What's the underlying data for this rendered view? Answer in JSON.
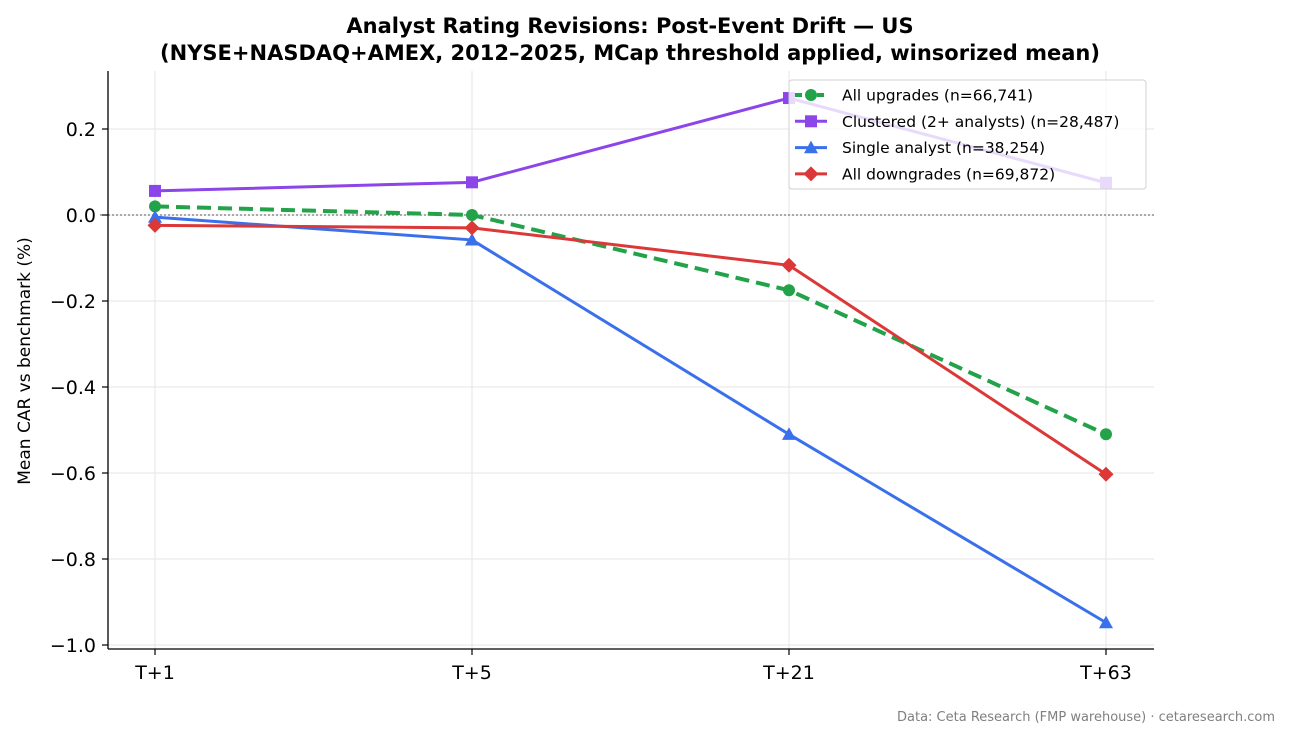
{
  "chart_data": {
    "type": "line",
    "title": "Analyst Rating Revisions: Post-Event Drift — US",
    "subtitle": "(NYSE+NASDAQ+AMEX, 2012–2025, MCap threshold applied, winsorized mean)",
    "xlabel": "",
    "ylabel": "Mean CAR vs benchmark (%)",
    "categories": [
      "T+1",
      "T+5",
      "T+21",
      "T+63"
    ],
    "ylim": [
      -1.0,
      0.33
    ],
    "yticks": [
      0.2,
      0.0,
      -0.2,
      -0.4,
      -0.6,
      -0.8,
      -1.0
    ],
    "ytick_labels": [
      "0.2",
      "0.0",
      "−0.2",
      "−0.4",
      "−0.6",
      "−0.8",
      "−1.0"
    ],
    "grid": true,
    "zero_line": true,
    "legend_position": "top-right",
    "series": [
      {
        "name": "All upgrades (n=66,741)",
        "values": [
          0.02,
          0.0,
          -0.175,
          -0.51
        ],
        "color": "#22a34a",
        "marker": "circle",
        "dashed": true
      },
      {
        "name": "Clustered (2+ analysts) (n=28,487)",
        "values": [
          0.056,
          0.076,
          0.272,
          0.075
        ],
        "color": "#8b45e8",
        "marker": "square",
        "dashed": false
      },
      {
        "name": "Single analyst (n=38,254)",
        "values": [
          -0.005,
          -0.058,
          -0.51,
          -0.948
        ],
        "color": "#3a70eb",
        "marker": "triangle",
        "dashed": false
      },
      {
        "name": "All downgrades (n=69,872)",
        "values": [
          -0.024,
          -0.03,
          -0.117,
          -0.603
        ],
        "color": "#dc3838",
        "marker": "diamond",
        "dashed": false
      }
    ],
    "source": "Data: Ceta Research (FMP warehouse) · cetaresearch.com"
  }
}
